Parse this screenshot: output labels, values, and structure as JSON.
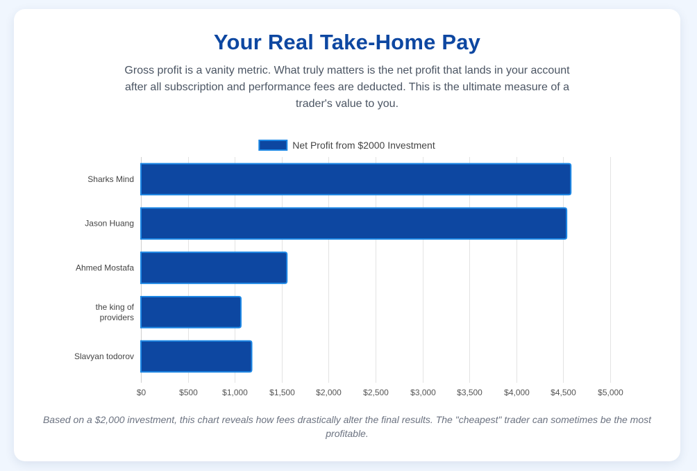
{
  "header": {
    "title": "Your Real Take-Home Pay",
    "subtitle": "Gross profit is a vanity metric. What truly matters is the net profit that lands in your account after all subscription and performance fees are deducted. This is the ultimate measure of a trader's value to you."
  },
  "footnote": "Based on a $2,000 investment, this chart reveals how fees drastically alter the final results. The \"cheapest\" trader can sometimes be the most profitable.",
  "chart_data": {
    "type": "bar",
    "orientation": "horizontal",
    "categories": [
      "Sharks Mind",
      "Jason Huang",
      "Ahmed Mostafa",
      "the king of providers",
      "Slavyan todorov"
    ],
    "category_lines": [
      [
        "Sharks Mind"
      ],
      [
        "Jason Huang"
      ],
      [
        "Ahmed Mostafa"
      ],
      [
        "the king of",
        "providers"
      ],
      [
        "Slavyan todorov"
      ]
    ],
    "series": [
      {
        "name": "Net Profit from $2000 Investment",
        "values": [
          4580,
          4535,
          1555,
          1065,
          1180
        ]
      }
    ],
    "xlim": [
      0,
      5000
    ],
    "x_ticks": [
      "$0",
      "$500",
      "$1,000",
      "$1,500",
      "$2,000",
      "$2,500",
      "$3,000",
      "$3,500",
      "$4,000",
      "$4,500",
      "$5,000"
    ],
    "grid": "vertical",
    "legend_position": "top",
    "colors": {
      "bar_fill": "#0d47a1",
      "bar_border": "#1e88e5",
      "grid": "#e3e3e3",
      "tick_text": "#555555"
    }
  }
}
